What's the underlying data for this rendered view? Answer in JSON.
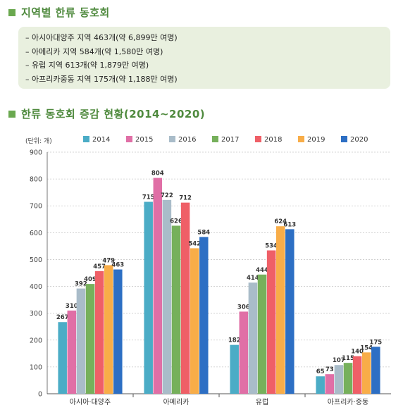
{
  "section1": {
    "title": "지역별 한류 동호회"
  },
  "summary": [
    "아시아대양주 지역 463개(약 6,899만 여명)",
    "아메리카 지역 584개(약 1,580만 여명)",
    "유럽 지역 613개(약 1,879만 여명)",
    "아프리카중동 지역 175개(약 1,188만 여명)"
  ],
  "section2": {
    "title": "한류 동호회 증감 현황(2014~2020)"
  },
  "chart_data": {
    "type": "bar",
    "unit_label": "(단위: 개)",
    "categories": [
      "아시아·대양주",
      "아메리카",
      "유럽",
      "아프리카·중동"
    ],
    "series": [
      {
        "name": "2014",
        "color": "#4bacc6",
        "values": [
          267,
          715,
          182,
          65
        ]
      },
      {
        "name": "2015",
        "color": "#e06fa6",
        "values": [
          310,
          804,
          306,
          73
        ]
      },
      {
        "name": "2016",
        "color": "#a9bcc9",
        "values": [
          392,
          722,
          414,
          107
        ]
      },
      {
        "name": "2017",
        "color": "#76b05b",
        "values": [
          409,
          626,
          444,
          115
        ]
      },
      {
        "name": "2018",
        "color": "#ef5f67",
        "values": [
          457,
          712,
          534,
          140
        ]
      },
      {
        "name": "2019",
        "color": "#f8ad48",
        "values": [
          479,
          542,
          624,
          154
        ]
      },
      {
        "name": "2020",
        "color": "#2d6fc4",
        "values": [
          463,
          584,
          613,
          175
        ]
      }
    ],
    "yticks": [
      0,
      100,
      200,
      300,
      400,
      500,
      600,
      700,
      800,
      900
    ],
    "ylim": [
      0,
      900
    ],
    "grid": true,
    "legend_position": "top"
  }
}
